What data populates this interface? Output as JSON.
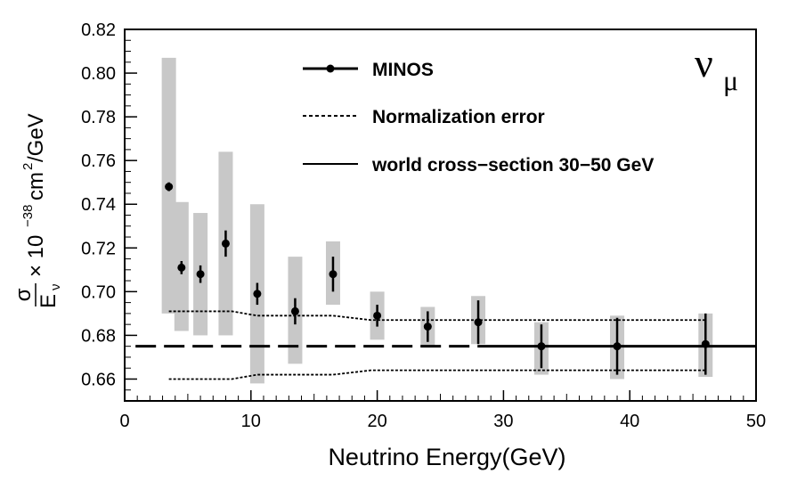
{
  "chart_data": {
    "type": "scatter",
    "xlabel": "Neutrino Energy(GeV)",
    "ylabel": {
      "numerator": "σ",
      "denominator": "E",
      "denominator_sub": "ν",
      "times": "× 10",
      "exponent": "−38",
      "unit": "cm",
      "unit_exp": "2",
      "unit_tail": "/GeV"
    },
    "flavor_label": {
      "main": "ν",
      "sub": "μ"
    },
    "xlim": [
      0,
      50
    ],
    "ylim": [
      0.65,
      0.82
    ],
    "x_ticks": [
      "0",
      "10",
      "20",
      "30",
      "40",
      "50"
    ],
    "y_ticks": [
      "0.66",
      "0.68",
      "0.70",
      "0.72",
      "0.74",
      "0.76",
      "0.78",
      "0.80",
      "0.82"
    ],
    "legend": [
      {
        "label": "MINOS",
        "style": "line-marker"
      },
      {
        "label": "Normalization error",
        "style": "dotted"
      },
      {
        "label": "world cross−section 30−50 GeV",
        "style": "solid"
      }
    ],
    "series": [
      {
        "name": "MINOS",
        "points": [
          {
            "x": 3.5,
            "y": 0.748,
            "stat": 0.002,
            "syst": [
              0.69,
              0.807
            ]
          },
          {
            "x": 4.5,
            "y": 0.711,
            "stat": 0.003,
            "syst": [
              0.682,
              0.741
            ]
          },
          {
            "x": 6.0,
            "y": 0.708,
            "stat": 0.004,
            "syst": [
              0.68,
              0.736
            ]
          },
          {
            "x": 8.0,
            "y": 0.722,
            "stat": 0.006,
            "syst": [
              0.68,
              0.764
            ]
          },
          {
            "x": 10.5,
            "y": 0.699,
            "stat": 0.005,
            "syst": [
              0.658,
              0.74
            ]
          },
          {
            "x": 13.5,
            "y": 0.691,
            "stat": 0.006,
            "syst": [
              0.667,
              0.716
            ]
          },
          {
            "x": 16.5,
            "y": 0.708,
            "stat": 0.008,
            "syst": [
              0.694,
              0.723
            ]
          },
          {
            "x": 20.0,
            "y": 0.689,
            "stat": 0.005,
            "syst": [
              0.678,
              0.7
            ]
          },
          {
            "x": 24.0,
            "y": 0.684,
            "stat": 0.007,
            "syst": [
              0.675,
              0.693
            ]
          },
          {
            "x": 28.0,
            "y": 0.686,
            "stat": 0.01,
            "syst": [
              0.676,
              0.698
            ]
          },
          {
            "x": 33.0,
            "y": 0.675,
            "stat": 0.01,
            "syst": [
              0.662,
              0.686
            ]
          },
          {
            "x": 39.0,
            "y": 0.675,
            "stat": 0.013,
            "syst": [
              0.66,
              0.689
            ]
          },
          {
            "x": 46.0,
            "y": 0.676,
            "stat": 0.014,
            "syst": [
              0.661,
              0.69
            ]
          }
        ]
      }
    ],
    "world_cross_section": {
      "y": 0.675,
      "dashed_range": [
        1,
        28
      ],
      "solid_range": [
        28,
        50
      ]
    },
    "normalization_error": {
      "upper": [
        [
          3.5,
          0.691
        ],
        [
          8.5,
          0.691
        ],
        [
          10.5,
          0.689
        ],
        [
          16.5,
          0.689
        ],
        [
          19.5,
          0.687
        ],
        [
          23.5,
          0.687
        ],
        [
          28,
          0.687
        ],
        [
          46,
          0.687
        ]
      ],
      "lower": [
        [
          3.5,
          0.66
        ],
        [
          8.5,
          0.66
        ],
        [
          10.5,
          0.662
        ],
        [
          16.5,
          0.662
        ],
        [
          19.5,
          0.664
        ],
        [
          23.5,
          0.664
        ],
        [
          28,
          0.664
        ],
        [
          46,
          0.664
        ]
      ]
    },
    "colors": {
      "band": "#c8c8c8",
      "ink": "#000000"
    }
  }
}
